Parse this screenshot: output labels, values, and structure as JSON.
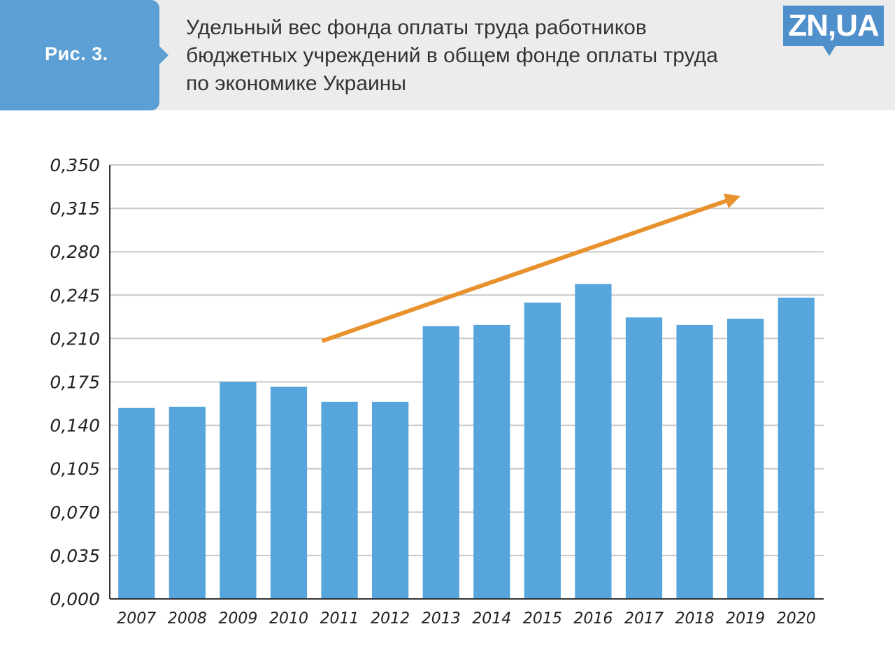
{
  "header": {
    "figure_label": "Рис. 3.",
    "title": "Удельный вес фонда оплаты труда работников\nбюджетных учреждений в общем фонде оплаты труда\nпо экономике Украины",
    "logo_text": "ZN,UA"
  },
  "colors": {
    "bar": "#56a5dc",
    "arrow": "#e8922e",
    "grid": "#c8c8c8",
    "axis": "#333333",
    "header_bg": "#ececec",
    "badge": "#5b9fd4"
  },
  "chart_data": {
    "type": "bar",
    "title": "Удельный вес фонда оплаты труда работников бюджетных учреждений в общем фонде оплаты труда по экономике Украины",
    "xlabel": "",
    "ylabel": "",
    "categories": [
      "2007",
      "2008",
      "2009",
      "2010",
      "2011",
      "2012",
      "2013",
      "2014",
      "2015",
      "2016",
      "2017",
      "2018",
      "2019",
      "2020"
    ],
    "values": [
      0.154,
      0.155,
      0.175,
      0.171,
      0.159,
      0.159,
      0.22,
      0.221,
      0.239,
      0.254,
      0.227,
      0.221,
      0.226,
      0.243
    ],
    "ylim": [
      0,
      0.35
    ],
    "yticks": [
      "0,000",
      "0,035",
      "0,070",
      "0,105",
      "0,140",
      "0,175",
      "0,210",
      "0,245",
      "0,280",
      "0,315",
      "0,350"
    ],
    "ytick_values": [
      0,
      0.035,
      0.07,
      0.105,
      0.14,
      0.175,
      0.21,
      0.245,
      0.28,
      0.315,
      0.35
    ],
    "grid": true,
    "legend": "none",
    "annotations": [
      {
        "type": "trend-arrow",
        "from": {
          "x": "2011",
          "y": 0.208
        },
        "to": {
          "x": "2019",
          "y": 0.325
        }
      }
    ]
  }
}
